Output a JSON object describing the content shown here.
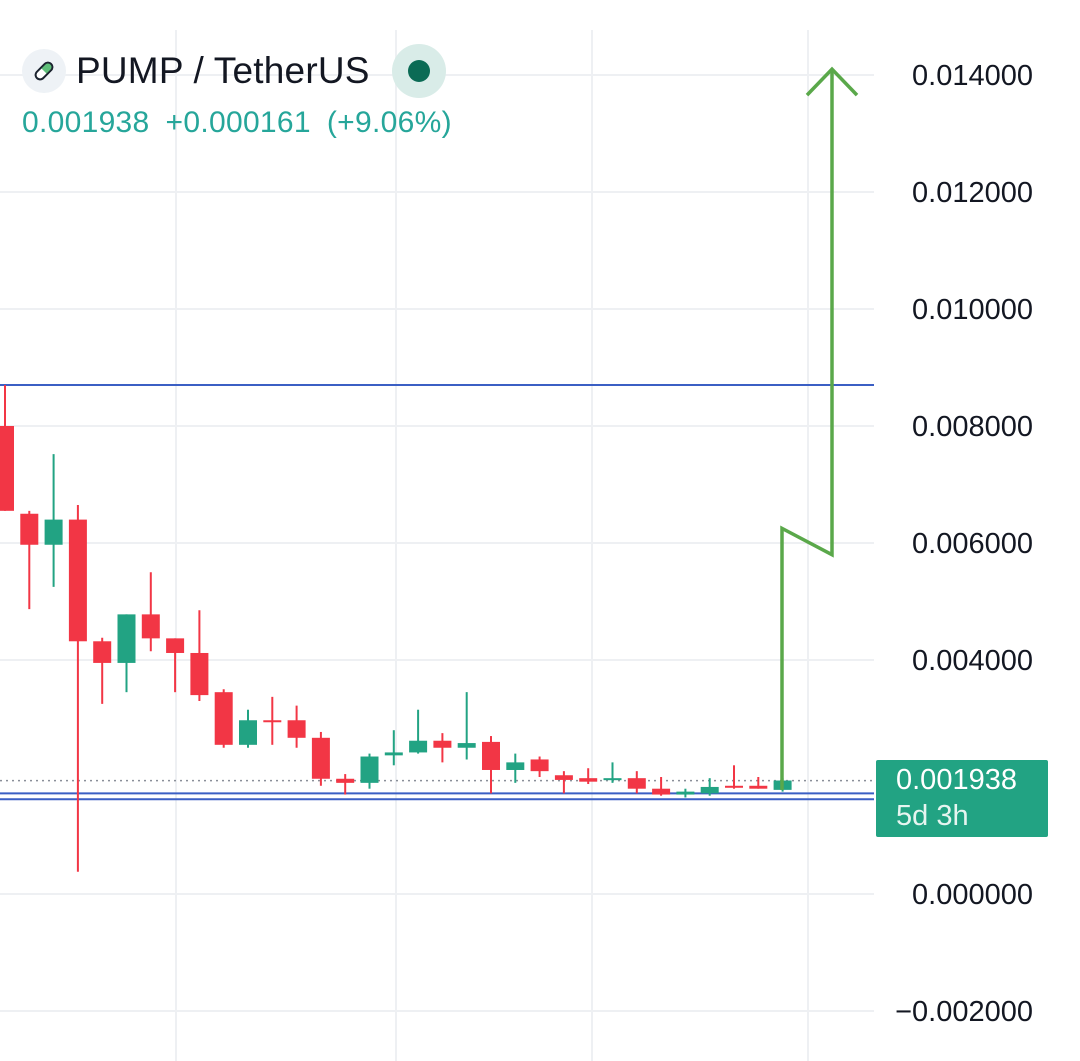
{
  "header": {
    "symbol": "PUMP / TetherUS",
    "symbol_icon": "pill-icon",
    "status_icon": "market-status-dot-icon",
    "last_price": "0.001938",
    "change": "+0.000161",
    "change_pct": "(+9.06%)"
  },
  "price_tag": {
    "price": "0.001938",
    "countdown": "5d 3h"
  },
  "colors": {
    "up": "#22a383",
    "down": "#f23645",
    "horizontal_line": "#3b5fc4",
    "arrow": "#5aa84a",
    "grid": "#eef0f3"
  },
  "chart_data": {
    "type": "candlestick",
    "title": "PUMP / TetherUS",
    "ylim": [
      -0.0026,
      0.0152
    ],
    "y_ticks": [
      {
        "value": 0.014,
        "label": "0.014000"
      },
      {
        "value": 0.012,
        "label": "0.012000"
      },
      {
        "value": 0.01,
        "label": "0.010000"
      },
      {
        "value": 0.008,
        "label": "0.008000"
      },
      {
        "value": 0.006,
        "label": "0.006000"
      },
      {
        "value": 0.004,
        "label": "0.004000"
      },
      {
        "value": 0.0,
        "label": "0.000000"
      },
      {
        "value": -0.002,
        "label": "−0.002000"
      }
    ],
    "candles": [
      {
        "o": 0.008,
        "h": 0.0087,
        "l": 0.00655,
        "c": 0.00655
      },
      {
        "o": 0.0065,
        "h": 0.00655,
        "l": 0.00487,
        "c": 0.00597
      },
      {
        "o": 0.00597,
        "h": 0.00752,
        "l": 0.00525,
        "c": 0.0064
      },
      {
        "o": 0.0064,
        "h": 0.00665,
        "l": 0.00038,
        "c": 0.00432
      },
      {
        "o": 0.00432,
        "h": 0.00438,
        "l": 0.00325,
        "c": 0.00395
      },
      {
        "o": 0.00395,
        "h": 0.00478,
        "l": 0.00345,
        "c": 0.00478
      },
      {
        "o": 0.00478,
        "h": 0.0055,
        "l": 0.00415,
        "c": 0.00437
      },
      {
        "o": 0.00437,
        "h": 0.00437,
        "l": 0.00345,
        "c": 0.00412
      },
      {
        "o": 0.00412,
        "h": 0.00485,
        "l": 0.0033,
        "c": 0.0034
      },
      {
        "o": 0.00345,
        "h": 0.0035,
        "l": 0.0025,
        "c": 0.00255
      },
      {
        "o": 0.00255,
        "h": 0.00315,
        "l": 0.0025,
        "c": 0.00297
      },
      {
        "o": 0.00297,
        "h": 0.00337,
        "l": 0.00255,
        "c": 0.00294
      },
      {
        "o": 0.00297,
        "h": 0.00322,
        "l": 0.0025,
        "c": 0.00267
      },
      {
        "o": 0.00267,
        "h": 0.00277,
        "l": 0.00185,
        "c": 0.00197
      },
      {
        "o": 0.00197,
        "h": 0.00205,
        "l": 0.0017,
        "c": 0.0019
      },
      {
        "o": 0.0019,
        "h": 0.0024,
        "l": 0.0018,
        "c": 0.00235
      },
      {
        "o": 0.00237,
        "h": 0.0028,
        "l": 0.0022,
        "c": 0.00242
      },
      {
        "o": 0.00242,
        "h": 0.00315,
        "l": 0.0024,
        "c": 0.00262
      },
      {
        "o": 0.00262,
        "h": 0.00275,
        "l": 0.00225,
        "c": 0.0025
      },
      {
        "o": 0.0025,
        "h": 0.00345,
        "l": 0.0023,
        "c": 0.00258
      },
      {
        "o": 0.0026,
        "h": 0.0027,
        "l": 0.00172,
        "c": 0.00212
      },
      {
        "o": 0.00212,
        "h": 0.0024,
        "l": 0.0019,
        "c": 0.00225
      },
      {
        "o": 0.0023,
        "h": 0.00235,
        "l": 0.002,
        "c": 0.0021
      },
      {
        "o": 0.00203,
        "h": 0.0021,
        "l": 0.00172,
        "c": 0.00195
      },
      {
        "o": 0.00198,
        "h": 0.00215,
        "l": 0.00188,
        "c": 0.00192
      },
      {
        "o": 0.00195,
        "h": 0.00225,
        "l": 0.0019,
        "c": 0.00198
      },
      {
        "o": 0.00198,
        "h": 0.0021,
        "l": 0.00172,
        "c": 0.0018
      },
      {
        "o": 0.0018,
        "h": 0.002,
        "l": 0.00168,
        "c": 0.0017
      },
      {
        "o": 0.0017,
        "h": 0.0018,
        "l": 0.00165,
        "c": 0.00175
      },
      {
        "o": 0.00172,
        "h": 0.00198,
        "l": 0.00168,
        "c": 0.00183
      },
      {
        "o": 0.00185,
        "h": 0.0022,
        "l": 0.0018,
        "c": 0.00183
      },
      {
        "o": 0.00185,
        "h": 0.002,
        "l": 0.0018,
        "c": 0.0018
      },
      {
        "o": 0.00178,
        "h": 0.00198,
        "l": 0.00175,
        "c": 0.00194
      }
    ],
    "horizontal_lines": [
      0.0087,
      0.00172,
      0.00162
    ],
    "last_price_line": 0.001938,
    "target_arrow": {
      "start": 0.00178,
      "zig_low": 0.00625,
      "zig_high": 0.0058,
      "end": 0.0141
    }
  }
}
